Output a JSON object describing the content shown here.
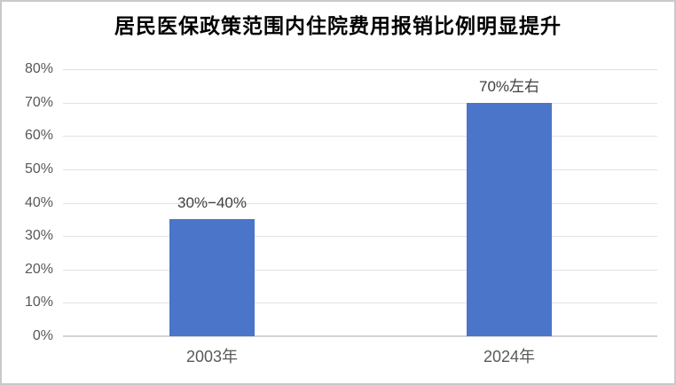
{
  "title": "居民医保政策范围内住院费用报销比例明显提升",
  "colors": {
    "bar": "#4a75c8",
    "gridline": "#e2e2e2",
    "baseline": "#d4d4d4",
    "axis_text": "#595959",
    "value_label_text": "#404040",
    "title_text": "#000000",
    "frame_border": "#c9c9c9",
    "background": "#ffffff"
  },
  "chart_data": {
    "type": "bar",
    "title": "居民医保政策范围内住院费用报销比例明显提升",
    "categories": [
      "2003年",
      "2024年"
    ],
    "values": [
      35,
      70
    ],
    "value_labels": [
      "30%−40%",
      "70%左右"
    ],
    "xlabel": "",
    "ylabel": "",
    "ylim": [
      0,
      80
    ],
    "yticks": [
      0,
      10,
      20,
      30,
      40,
      50,
      60,
      70,
      80
    ],
    "ytick_labels": [
      "0%",
      "10%",
      "20%",
      "30%",
      "40%",
      "50%",
      "60%",
      "70%",
      "80%"
    ],
    "grid": "horizontal",
    "legend": "none"
  }
}
